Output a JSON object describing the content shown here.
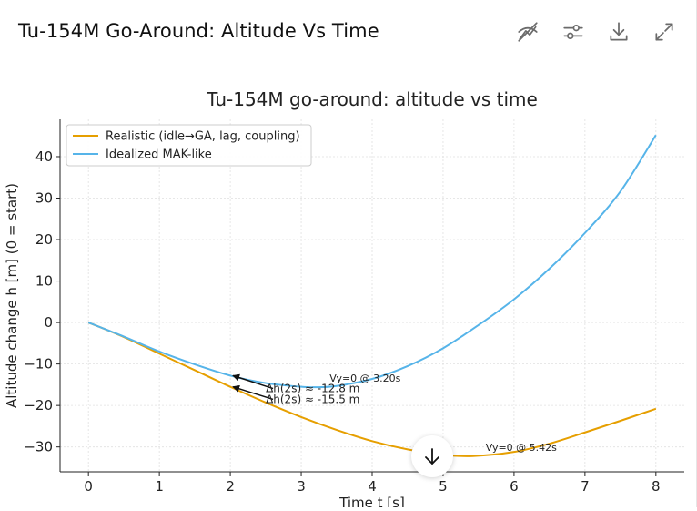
{
  "header": {
    "title": "Tu-154M Go-Around: Altitude Vs Time"
  },
  "toolbar": {
    "icons": [
      "hide-chart-icon",
      "settings-sliders-icon",
      "download-icon",
      "expand-icon"
    ]
  },
  "colors": {
    "realistic": "#E69F00",
    "idealized": "#56B4E9",
    "axis": "#222222",
    "grid": "#e0e0e0"
  },
  "chart_data": {
    "type": "line",
    "title": "Tu-154M go-around: altitude vs time",
    "xlabel": "Time t [s]",
    "ylabel": "Altitude change h [m] (0 = start)",
    "xlim": [
      -0.4,
      8.4
    ],
    "ylim": [
      -36,
      49
    ],
    "xticks": [
      0,
      1,
      2,
      3,
      4,
      5,
      6,
      7,
      8
    ],
    "yticks": [
      -30,
      -20,
      -10,
      0,
      10,
      20,
      30,
      40
    ],
    "grid": true,
    "legend_position": "top-left",
    "series": [
      {
        "name": "Realistic (idle→GA, lag, coupling)",
        "color": "#E69F00",
        "x": [
          0,
          0.5,
          1,
          1.5,
          2,
          2.5,
          3,
          3.5,
          4,
          4.5,
          5,
          5.42,
          6,
          6.5,
          7,
          7.5,
          8
        ],
        "y": [
          0,
          -3.5,
          -7.5,
          -11.5,
          -15.5,
          -19.3,
          -22.8,
          -25.9,
          -28.6,
          -30.6,
          -31.9,
          -32.2,
          -31.2,
          -29.2,
          -26.5,
          -23.7,
          -20.8
        ]
      },
      {
        "name": "Idealized MAK-like",
        "color": "#56B4E9",
        "x": [
          0,
          0.5,
          1,
          1.5,
          2,
          2.5,
          3,
          3.2,
          3.5,
          4,
          4.5,
          5,
          5.5,
          6,
          6.5,
          7,
          7.5,
          8
        ],
        "y": [
          0,
          -3.4,
          -7.0,
          -10.1,
          -12.8,
          -14.6,
          -15.5,
          -15.6,
          -15.3,
          -13.6,
          -10.5,
          -6.2,
          -0.6,
          5.6,
          13.0,
          21.6,
          31.6,
          45.2
        ]
      }
    ],
    "annotations": [
      {
        "text": "Δh(2s) ≈ -12.8 m",
        "arrow_to": [
          2,
          -12.8
        ],
        "text_at": [
          2.5,
          -16.8
        ],
        "size": "medium"
      },
      {
        "text": "Δh(2s) ≈ -15.5 m",
        "arrow_to": [
          2,
          -15.5
        ],
        "text_at": [
          2.5,
          -19.4
        ],
        "size": "medium"
      },
      {
        "text": "Vy=0 @ 3.20s",
        "text_at": [
          3.4,
          -14.3
        ],
        "size": "small"
      },
      {
        "text": "Vy=0 @ 5.42s",
        "text_at": [
          5.6,
          -30.9
        ],
        "size": "small"
      }
    ]
  }
}
